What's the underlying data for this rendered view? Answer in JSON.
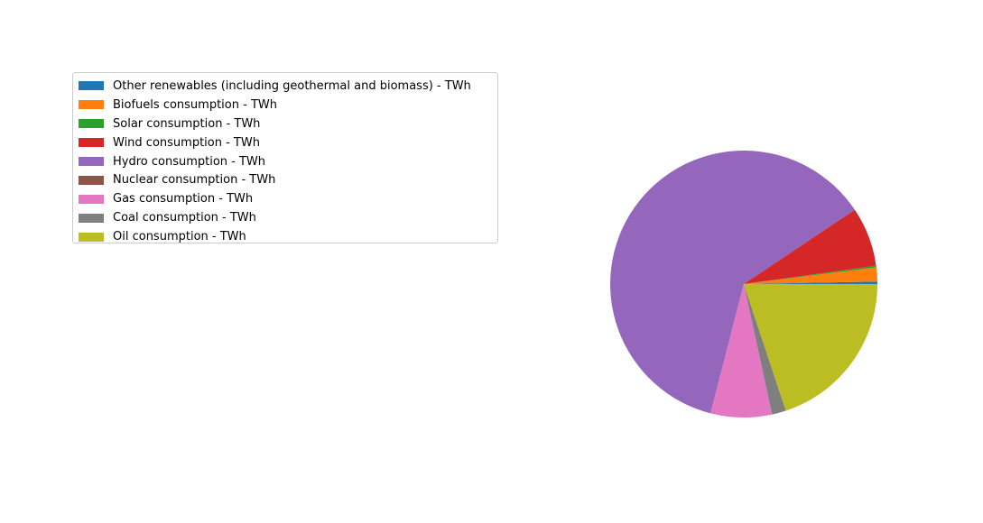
{
  "chart_data": {
    "type": "pie",
    "title": "",
    "legend_position": "upper-left",
    "start_angle_deg": 0,
    "direction": "counterclockwise",
    "series": [
      {
        "name": "Other renewables (including geothermal and biomass) - TWh",
        "value": 0.3,
        "color": "#1f77b4"
      },
      {
        "name": "Biofuels consumption - TWh",
        "value": 1.7,
        "color": "#ff7f0e"
      },
      {
        "name": "Solar consumption - TWh",
        "value": 0.2,
        "color": "#2ca02c"
      },
      {
        "name": "Wind consumption - TWh",
        "value": 7.2,
        "color": "#d62728"
      },
      {
        "name": "Hydro consumption - TWh",
        "value": 61.6,
        "color": "#9467bd"
      },
      {
        "name": "Nuclear consumption - TWh",
        "value": 0.0,
        "color": "#8c564b"
      },
      {
        "name": "Gas consumption - TWh",
        "value": 7.4,
        "color": "#e377c2"
      },
      {
        "name": "Coal consumption - TWh",
        "value": 1.7,
        "color": "#7f7f7f"
      },
      {
        "name": "Oil consumption - TWh",
        "value": 19.9,
        "color": "#bcbd22"
      }
    ]
  }
}
